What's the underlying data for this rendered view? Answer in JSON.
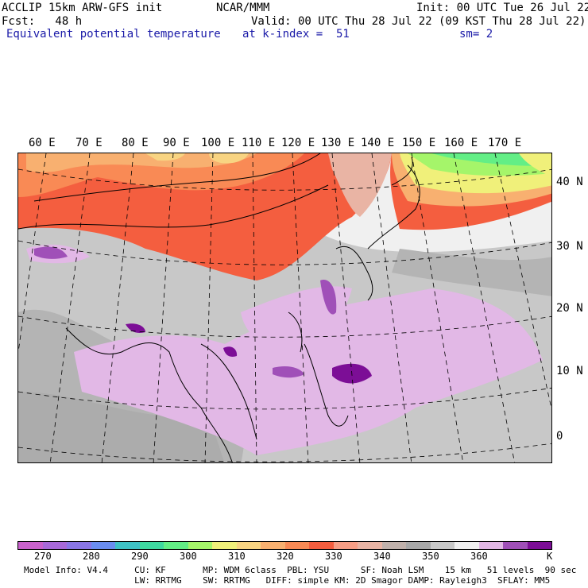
{
  "header": {
    "line1_left": "ACCLIP 15km ARW-GFS init",
    "line1_center": "NCAR/MMM",
    "line1_right": "Init: 00 UTC Tue 26 Jul 22",
    "line2_left": "Fcst:   48 h",
    "line2_right": "Valid: 00 UTC Thu 28 Jul 22 (09 KST Thu 28 Jul 22)",
    "field_name": "Equivalent potential temperature",
    "level": "at k-index =  51",
    "smoothing": "sm= 2"
  },
  "lon_labels": [
    "60 E",
    "70 E",
    "80 E",
    "90 E",
    "100 E",
    "110 E",
    "120 E",
    "130 E",
    "140 E",
    "150 E",
    "160 E",
    "170 E"
  ],
  "lat_labels": [
    "40 N",
    "30 N",
    "20 N",
    "10 N",
    "0"
  ],
  "colorbar": {
    "colors": [
      "#c962cc",
      "#a869d8",
      "#8a76e6",
      "#6a8df0",
      "#3fc2c6",
      "#3fd8a0",
      "#63ee86",
      "#a5f56a",
      "#f0f07a",
      "#f8d482",
      "#f8b070",
      "#f98a55",
      "#f45e3f",
      "#f79e85",
      "#e9b4a4",
      "#c0b1ab",
      "#a8a8a8",
      "#c8c8c8",
      "#f0f0f0",
      "#e2b8e6",
      "#a050b8",
      "#7c0e96"
    ],
    "labels": [
      "270",
      "280",
      "290",
      "300",
      "310",
      "320",
      "330",
      "340",
      "350",
      "360",
      "K"
    ]
  },
  "info": {
    "line1": "Model Info: V4.4     CU: KF       MP: WDM 6class  PBL: YSU      SF: Noah LSM    15 km   51 levels  90 sec",
    "line2": "                     LW: RRTMG    SW: RRTMG   DIFF: simple KM: 2D Smagor DAMP: Rayleigh3  SFLAY: MM5"
  }
}
